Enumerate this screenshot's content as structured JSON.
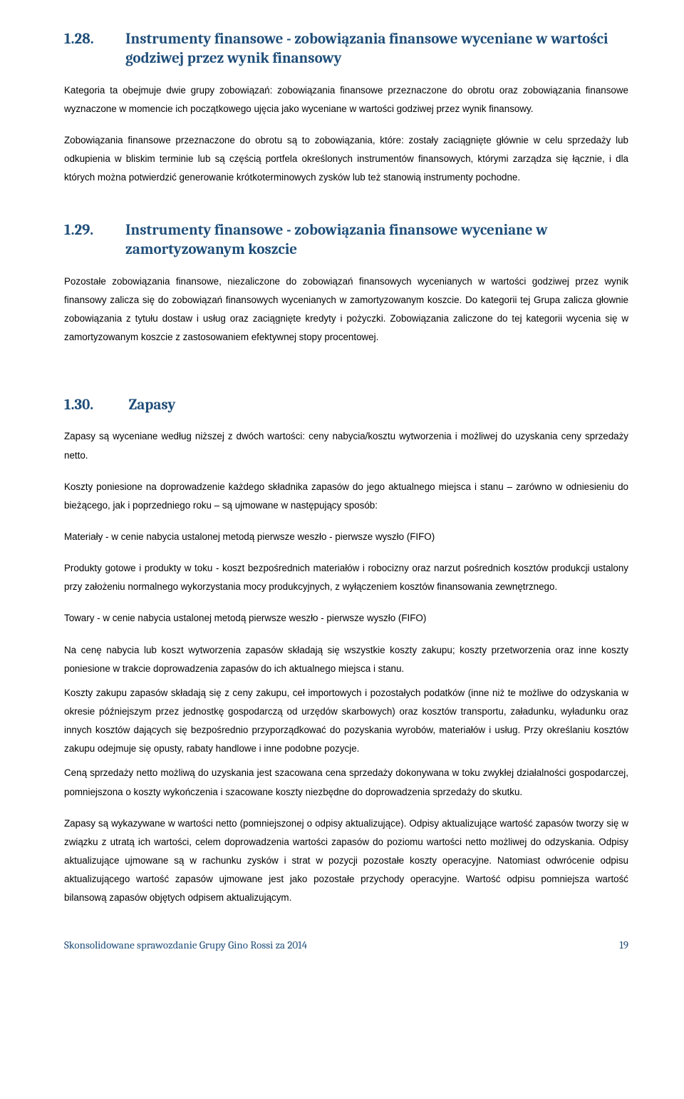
{
  "sections": {
    "s128": {
      "number": "1.28.",
      "title": "Instrumenty finansowe - zobowiązania finansowe wyceniane w wartości godziwej przez wynik finansowy",
      "heading_color": "#1f4e79",
      "heading_fontsize_pt": 16,
      "p1": "Kategoria ta obejmuje dwie grupy zobowiązań: zobowiązania finansowe przeznaczone do obrotu oraz zobowiązania finansowe wyznaczone w momencie ich początkowego ujęcia jako wyceniane w wartości godziwej przez wynik finansowy.",
      "p2": "Zobowiązania finansowe przeznaczone do obrotu są to zobowiązania, które: zostały zaciągnięte głównie w celu sprzedaży lub odkupienia w bliskim terminie lub są częścią portfela określonych instrumentów finansowych, którymi zarządza się łącznie, i dla których można potwierdzić generowanie krótkoterminowych zysków lub też stanowią instrumenty pochodne."
    },
    "s129": {
      "number": "1.29.",
      "title": "Instrumenty finansowe - zobowiązania finansowe wyceniane w zamortyzowanym koszcie",
      "heading_color": "#1f4e79",
      "heading_fontsize_pt": 16,
      "p1": "Pozostałe zobowiązania finansowe, niezaliczone do zobowiązań finansowych wycenianych w wartości godziwej przez wynik finansowy zalicza się do zobowiązań finansowych wycenianych w zamortyzowanym koszcie. Do kategorii tej Grupa zalicza głownie zobowiązania z tytułu dostaw i usług oraz zaciągnięte kredyty i pożyczki. Zobowiązania zaliczone do tej kategorii wycenia się w zamortyzowanym koszcie z zastosowaniem efektywnej stopy procentowej."
    },
    "s130": {
      "number": "1.30.",
      "title": "Zapasy",
      "heading_color": "#1f4e79",
      "heading_fontsize_pt": 16,
      "p1": "Zapasy są wyceniane według niższej z dwóch wartości: ceny nabycia/kosztu wytworzenia i możliwej do uzyskania ceny sprzedaży netto.",
      "p2": "Koszty poniesione na doprowadzenie każdego składnika zapasów do jego aktualnego miejsca i stanu – zarówno w odniesieniu do bieżącego, jak i poprzedniego roku – są ujmowane w następujący sposób:",
      "p3": "Materiały - w cenie nabycia ustalonej metodą pierwsze weszło - pierwsze wyszło (FIFO)",
      "p4": "Produkty gotowe i produkty w toku - koszt bezpośrednich materiałów i robocizny oraz  narzut pośrednich kosztów produkcji ustalony przy założeniu normalnego wykorzystania mocy produkcyjnych, z wyłączeniem kosztów finansowania zewnętrznego.",
      "p5": "Towary - w cenie nabycia ustalonej metodą pierwsze weszło - pierwsze wyszło (FIFO)",
      "p6": "Na cenę nabycia lub koszt wytworzenia zapasów składają się wszystkie koszty zakupu; koszty przetworzenia oraz inne koszty poniesione w trakcie doprowadzenia zapasów do ich aktualnego miejsca i stanu.",
      "p7": "Koszty zakupu zapasów składają się z ceny zakupu, ceł importowych i pozostałych podatków (inne niż te możliwe do odzyskania  w okresie późniejszym przez jednostkę gospodarczą od urzędów skarbowych) oraz kosztów transportu, załadunku, wyładunku oraz innych kosztów dających się bezpośrednio przyporządkować do pozyskania wyrobów, materiałów i usług. Przy określaniu kosztów zakupu odejmuje się opusty, rabaty handlowe i inne podobne pozycje.",
      "p8": "Ceną sprzedaży netto możliwą do uzyskania jest szacowana cena sprzedaży dokonywana w toku zwykłej działalności gospodarczej, pomniejszona o koszty wykończenia i szacowane koszty niezbędne do doprowadzenia sprzedaży do skutku.",
      "p9": "Zapasy są wykazywane w wartości netto (pomniejszonej o odpisy aktualizujące). Odpisy aktualizujące wartość zapasów tworzy się w związku z utratą ich wartości, celem doprowadzenia wartości zapasów do poziomu wartości netto możliwej do odzyskania. Odpisy aktualizujące ujmowane są w rachunku zysków i strat w pozycji pozostałe koszty operacyjne. Natomiast odwrócenie odpisu aktualizującego wartość zapasów ujmowane jest jako pozostałe przychody operacyjne. Wartość odpisu pomniejsza wartość bilansową zapasów objętych odpisem aktualizującym."
    }
  },
  "footer": {
    "text": "Skonsolidowane sprawozdanie Grupy Gino Rossi za 2014",
    "page": "19",
    "color": "#1f4e79",
    "fontsize_pt": 11
  },
  "body_text": {
    "color": "#000000",
    "fontsize_pt": 10,
    "background_color": "#ffffff"
  }
}
